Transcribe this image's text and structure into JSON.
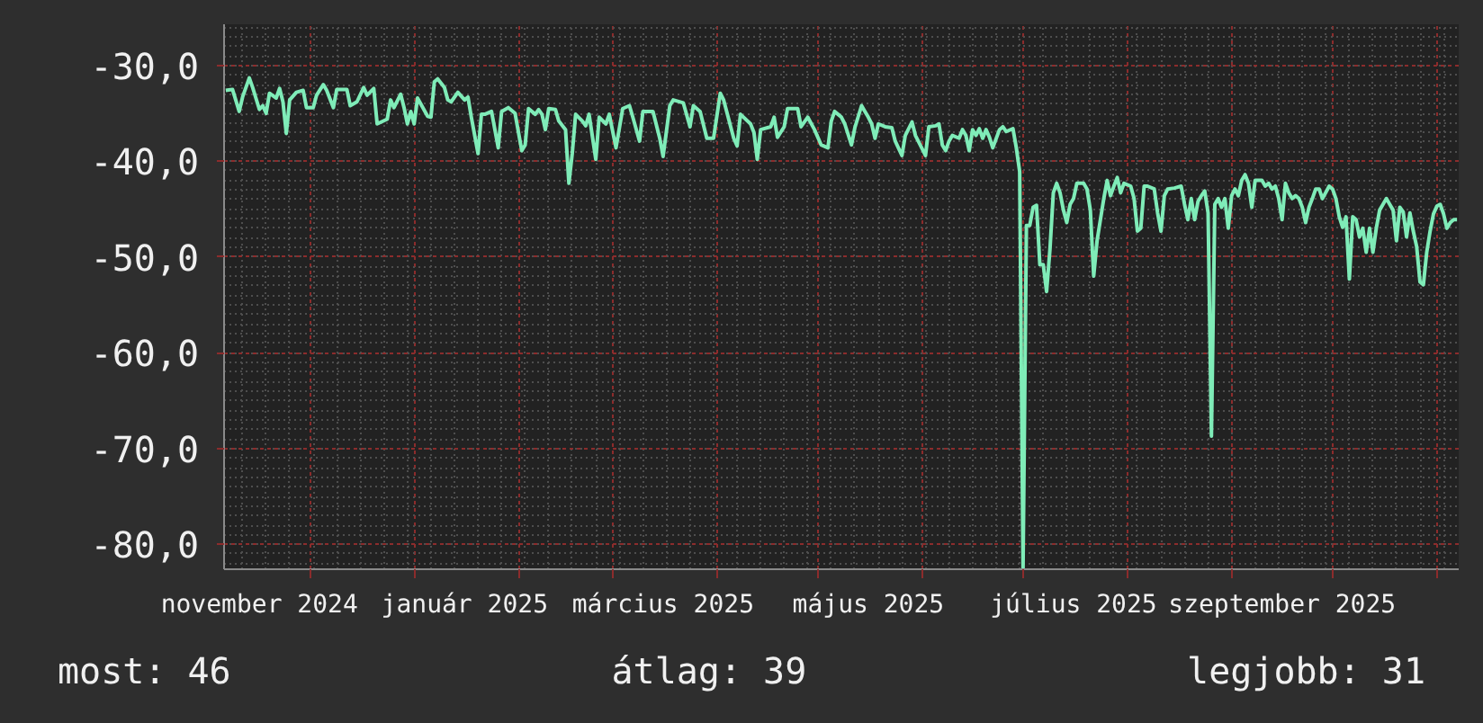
{
  "chart_data": {
    "type": "line",
    "color": "#7fecb8",
    "x": [
      "2024-11-06",
      "2024-11-08",
      "2024-11-10",
      "2024-11-11",
      "2024-11-13",
      "2024-11-14",
      "2024-11-16",
      "2024-11-17",
      "2024-11-18",
      "2024-11-19",
      "2024-11-21",
      "2024-11-22",
      "2024-11-23",
      "2024-11-24",
      "2024-11-25",
      "2024-11-27",
      "2024-11-29",
      "2024-11-30",
      "2024-12-02",
      "2024-12-03",
      "2024-12-05",
      "2024-12-06",
      "2024-12-08",
      "2024-12-09",
      "2024-12-12",
      "2024-12-13",
      "2024-12-15",
      "2024-12-17",
      "2024-12-18",
      "2024-12-20",
      "2024-12-21",
      "2024-12-24",
      "2024-12-25",
      "2024-12-26",
      "2024-12-28",
      "2024-12-29",
      "2024-12-30",
      "2024-12-31",
      "2025-01-01",
      "2025-01-02",
      "2025-01-05",
      "2025-01-06",
      "2025-01-07",
      "2025-01-08",
      "2025-01-10",
      "2025-01-11",
      "2025-01-12",
      "2025-01-14",
      "2025-01-16",
      "2025-01-17",
      "2025-01-18",
      "2025-01-20",
      "2025-01-21",
      "2025-01-22",
      "2025-01-24",
      "2025-01-25",
      "2025-01-26",
      "2025-01-27",
      "2025-01-29",
      "2025-01-31",
      "2025-02-02",
      "2025-02-03",
      "2025-02-04",
      "2025-02-06",
      "2025-02-07",
      "2025-02-08",
      "2025-02-09",
      "2025-02-10",
      "2025-02-12",
      "2025-02-13",
      "2025-02-15",
      "2025-02-16",
      "2025-02-17",
      "2025-02-18",
      "2025-02-20",
      "2025-02-21",
      "2025-02-22",
      "2025-02-24",
      "2025-02-25",
      "2025-02-27",
      "2025-02-28",
      "2025-03-02",
      "2025-03-04",
      "2025-03-06",
      "2025-03-07",
      "2025-03-09",
      "2025-03-10",
      "2025-03-13",
      "2025-03-15",
      "2025-03-16",
      "2025-03-18",
      "2025-03-19",
      "2025-03-22",
      "2025-03-24",
      "2025-03-25",
      "2025-03-27",
      "2025-03-29",
      "2025-03-31",
      "2025-04-02",
      "2025-04-03",
      "2025-04-06",
      "2025-04-07",
      "2025-04-08",
      "2025-04-11",
      "2025-04-12",
      "2025-04-13",
      "2025-04-14",
      "2025-04-17",
      "2025-04-18",
      "2025-04-19",
      "2025-04-21",
      "2025-04-22",
      "2025-04-25",
      "2025-04-26",
      "2025-04-28",
      "2025-04-30",
      "2025-05-02",
      "2025-05-04",
      "2025-05-05",
      "2025-05-06",
      "2025-05-07",
      "2025-05-08",
      "2025-05-09",
      "2025-05-11",
      "2025-05-12",
      "2025-05-14",
      "2025-05-15",
      "2025-05-16",
      "2025-05-17",
      "2025-05-18",
      "2025-05-19",
      "2025-05-21",
      "2025-05-23",
      "2025-05-24",
      "2025-05-26",
      "2025-05-27",
      "2025-05-29",
      "2025-05-30",
      "2025-06-02",
      "2025-06-03",
      "2025-06-05",
      "2025-06-06",
      "2025-06-07",
      "2025-06-08",
      "2025-06-09",
      "2025-06-10",
      "2025-06-12",
      "2025-06-13",
      "2025-06-14",
      "2025-06-15",
      "2025-06-16",
      "2025-06-17",
      "2025-06-18",
      "2025-06-19",
      "2025-06-20",
      "2025-06-21",
      "2025-06-22",
      "2025-06-24",
      "2025-06-25",
      "2025-06-26",
      "2025-06-28",
      "2025-06-29",
      "2025-06-30",
      "2025-07-01",
      "2025-07-02",
      "2025-07-03",
      "2025-07-04",
      "2025-07-05",
      "2025-07-06",
      "2025-07-07",
      "2025-07-08",
      "2025-07-09",
      "2025-07-10",
      "2025-07-11",
      "2025-07-12",
      "2025-07-13",
      "2025-07-14",
      "2025-07-15",
      "2025-07-16",
      "2025-07-17",
      "2025-07-19",
      "2025-07-20",
      "2025-07-21",
      "2025-07-22",
      "2025-07-23",
      "2025-07-24",
      "2025-07-25",
      "2025-07-26",
      "2025-07-27",
      "2025-07-28",
      "2025-07-29",
      "2025-07-30",
      "2025-07-31",
      "2025-08-02",
      "2025-08-03",
      "2025-08-04",
      "2025-08-05",
      "2025-08-06",
      "2025-08-07",
      "2025-08-09",
      "2025-08-10",
      "2025-08-11",
      "2025-08-12",
      "2025-08-13",
      "2025-08-15",
      "2025-08-17",
      "2025-08-18",
      "2025-08-19",
      "2025-08-20",
      "2025-08-21",
      "2025-08-22",
      "2025-08-23",
      "2025-08-24",
      "2025-08-25",
      "2025-08-26",
      "2025-08-27",
      "2025-08-28",
      "2025-08-29",
      "2025-08-30",
      "2025-08-31",
      "2025-09-01",
      "2025-09-02",
      "2025-09-03",
      "2025-09-04",
      "2025-09-05",
      "2025-09-06",
      "2025-09-07",
      "2025-09-08",
      "2025-09-10",
      "2025-09-11",
      "2025-09-12",
      "2025-09-13",
      "2025-09-14",
      "2025-09-15",
      "2025-09-16",
      "2025-09-17",
      "2025-09-18",
      "2025-09-19",
      "2025-09-20",
      "2025-09-21",
      "2025-09-22",
      "2025-09-23",
      "2025-09-24",
      "2025-09-25",
      "2025-09-26",
      "2025-09-27",
      "2025-09-28",
      "2025-09-30",
      "2025-10-01",
      "2025-10-02",
      "2025-10-03",
      "2025-10-04",
      "2025-10-05",
      "2025-10-06",
      "2025-10-07",
      "2025-10-08",
      "2025-10-09",
      "2025-10-10",
      "2025-10-11",
      "2025-10-12",
      "2025-10-13",
      "2025-10-14",
      "2025-10-15",
      "2025-10-16",
      "2025-10-17",
      "2025-10-18",
      "2025-10-19",
      "2025-10-20",
      "2025-10-21",
      "2025-10-22",
      "2025-10-23",
      "2025-10-24",
      "2025-10-25",
      "2025-10-26",
      "2025-10-27",
      "2025-10-28",
      "2025-10-29",
      "2025-10-30",
      "2025-10-31",
      "2025-11-01",
      "2025-11-02",
      "2025-11-03",
      "2025-11-04",
      "2025-11-05",
      "2025-11-06",
      "2025-11-07"
    ],
    "values": [
      -32.6,
      -32.5,
      -34.8,
      -33.3,
      -31.3,
      -32.3,
      -34.6,
      -34.2,
      -35.0,
      -32.9,
      -33.4,
      -32.4,
      -33.8,
      -37.1,
      -33.6,
      -32.8,
      -32.6,
      -34.4,
      -34.4,
      -33.1,
      -32.0,
      -32.6,
      -34.4,
      -32.5,
      -32.5,
      -34.2,
      -33.8,
      -32.3,
      -33.1,
      -32.4,
      -36.1,
      -35.6,
      -33.6,
      -34.4,
      -33.0,
      -34.4,
      -36.1,
      -34.8,
      -36.1,
      -33.4,
      -35.3,
      -35.4,
      -31.7,
      -31.4,
      -32.3,
      -33.6,
      -33.8,
      -32.8,
      -33.6,
      -33.3,
      -35.4,
      -39.2,
      -35.1,
      -35.1,
      -34.8,
      -36.7,
      -38.6,
      -34.8,
      -34.4,
      -35.0,
      -38.9,
      -38.3,
      -34.5,
      -35.1,
      -34.6,
      -35.1,
      -36.7,
      -34.5,
      -34.6,
      -35.8,
      -36.7,
      -42.3,
      -39.2,
      -35.1,
      -35.8,
      -36.3,
      -35.1,
      -39.8,
      -35.4,
      -36.1,
      -35.1,
      -38.6,
      -34.5,
      -34.2,
      -35.4,
      -37.9,
      -34.8,
      -34.8,
      -37.6,
      -39.5,
      -34.2,
      -33.6,
      -33.9,
      -36.4,
      -34.2,
      -34.8,
      -37.6,
      -37.6,
      -32.9,
      -33.6,
      -37.6,
      -38.4,
      -35.1,
      -36.1,
      -37.0,
      -39.8,
      -36.7,
      -36.4,
      -35.4,
      -37.5,
      -36.4,
      -34.5,
      -34.5,
      -36.4,
      -35.4,
      -36.7,
      -38.3,
      -38.6,
      -35.8,
      -34.8,
      -35.1,
      -35.4,
      -36.1,
      -38.3,
      -36.5,
      -34.2,
      -34.8,
      -35.4,
      -36.1,
      -37.6,
      -36.1,
      -36.4,
      -36.5,
      -37.9,
      -39.4,
      -37.3,
      -35.9,
      -37.3,
      -39.4,
      -36.4,
      -36.3,
      -36.1,
      -38.3,
      -38.9,
      -37.9,
      -37.3,
      -37.6,
      -36.7,
      -37.3,
      -38.9,
      -36.7,
      -37.3,
      -36.6,
      -37.6,
      -36.7,
      -37.5,
      -38.6,
      -36.7,
      -36.4,
      -36.9,
      -36.6,
      -38.6,
      -41.1,
      -82.5,
      -46.7,
      -46.7,
      -44.8,
      -44.6,
      -50.8,
      -50.8,
      -53.6,
      -49.2,
      -43.3,
      -42.3,
      -43.3,
      -45.1,
      -46.4,
      -44.5,
      -43.9,
      -42.3,
      -42.3,
      -42.9,
      -45.1,
      -52.0,
      -48.3,
      -46.1,
      -43.9,
      -42.0,
      -43.6,
      -42.6,
      -41.7,
      -43.3,
      -42.3,
      -42.6,
      -43.9,
      -47.3,
      -47.0,
      -42.6,
      -42.6,
      -42.9,
      -45.4,
      -47.3,
      -43.6,
      -42.9,
      -42.8,
      -42.6,
      -44.5,
      -46.1,
      -43.9,
      -46.1,
      -44.2,
      -43.6,
      -43.1,
      -45.4,
      -68.7,
      -44.5,
      -43.9,
      -44.8,
      -43.9,
      -47.0,
      -43.6,
      -42.9,
      -43.6,
      -42.0,
      -41.4,
      -42.3,
      -44.8,
      -42.0,
      -42.0,
      -42.6,
      -42.3,
      -42.9,
      -42.6,
      -43.9,
      -46.1,
      -42.3,
      -43.3,
      -43.9,
      -43.6,
      -43.9,
      -44.8,
      -46.4,
      -44.8,
      -43.9,
      -42.9,
      -42.9,
      -43.9,
      -42.6,
      -42.9,
      -43.9,
      -45.8,
      -46.9,
      -45.8,
      -52.3,
      -45.8,
      -46.1,
      -47.9,
      -47.0,
      -49.5,
      -47.0,
      -49.5,
      -47.0,
      -45.1,
      -44.5,
      -43.9,
      -44.5,
      -45.1,
      -48.3,
      -44.8,
      -45.3,
      -47.9,
      -45.4,
      -47.3,
      -48.9,
      -52.6,
      -52.9,
      -49.5,
      -47.3,
      -45.5,
      -44.7,
      -44.5,
      -45.5,
      -47.0,
      -46.4,
      -46.1,
      -46.1
    ],
    "xlim": [
      "2024-11-05T12:00",
      "2025-11-07T12:00"
    ],
    "ylim": [
      -82.6,
      -25.7
    ],
    "xticks": [
      {
        "value": "2024-11-16",
        "label": "november 2024"
      },
      {
        "value": "2024-12-01",
        "label": null
      },
      {
        "value": "2025-01-01",
        "label": null
      },
      {
        "value": "2025-01-16",
        "label": "január 2025"
      },
      {
        "value": "2025-02-01",
        "label": null
      },
      {
        "value": "2025-03-01",
        "label": null
      },
      {
        "value": "2025-03-16",
        "label": "március 2025"
      },
      {
        "value": "2025-04-01",
        "label": null
      },
      {
        "value": "2025-05-01",
        "label": null
      },
      {
        "value": "2025-05-16",
        "label": "május 2025"
      },
      {
        "value": "2025-06-01",
        "label": null
      },
      {
        "value": "2025-07-01",
        "label": null
      },
      {
        "value": "2025-07-16",
        "label": "július 2025"
      },
      {
        "value": "2025-08-01",
        "label": null
      },
      {
        "value": "2025-09-01",
        "label": null
      },
      {
        "value": "2025-09-16",
        "label": "szeptember 2025"
      },
      {
        "value": "2025-10-01",
        "label": null
      },
      {
        "value": "2025-11-01",
        "label": null
      }
    ],
    "yticks": [
      {
        "value": -30,
        "label": "-30,0"
      },
      {
        "value": -40,
        "label": "-40,0"
      },
      {
        "value": -50,
        "label": "-50,0"
      },
      {
        "value": -60,
        "label": "-60,0"
      },
      {
        "value": -70,
        "label": "-70,0"
      },
      {
        "value": -80,
        "label": "-80,0"
      }
    ],
    "grid": true,
    "annotations": [
      "most: 46",
      "átlag: 39",
      "legjobb: 31"
    ]
  }
}
